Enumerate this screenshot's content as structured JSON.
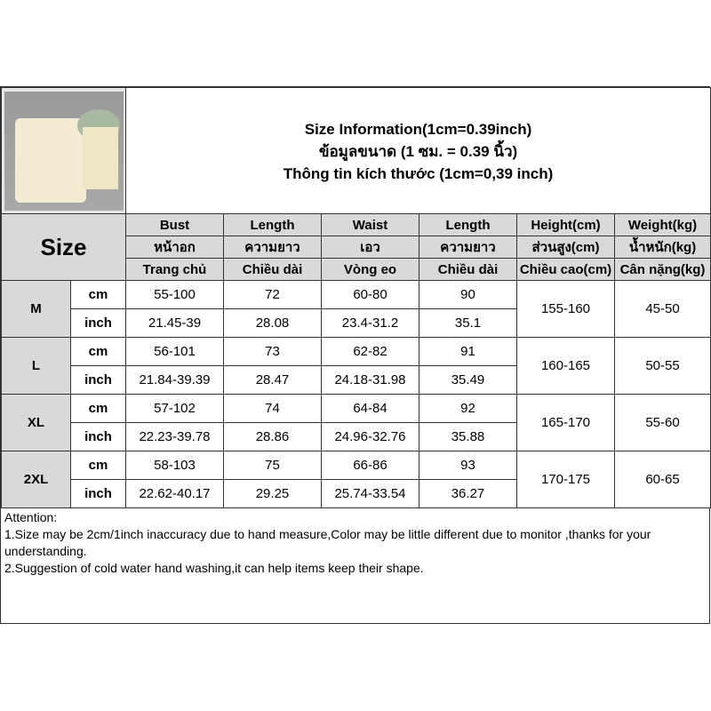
{
  "title": {
    "line1": "Size Information(1cm=0.39inch)",
    "line2": "ข้อมูลขนาด (1 ซม. = 0.39 นิ้ว)",
    "line3": "Thông tin kích thước (1cm=0,39 inch)"
  },
  "size_label": "Size",
  "headers": [
    [
      "Bust",
      "Length",
      "Waist",
      "Length",
      "Height(cm)",
      "Weight(kg)"
    ],
    [
      "หน้าอก",
      "ความยาว",
      "เอว",
      "ความยาว",
      "ส่วนสูง(cm)",
      "น้ำหนัก(kg)"
    ],
    [
      "Trang chủ",
      "Chiều dài",
      "Vòng eo",
      "Chiều dài",
      "Chiều cao(cm)",
      "Cân nặng(kg)"
    ]
  ],
  "units": {
    "cm": "cm",
    "inch": "inch"
  },
  "rows": [
    {
      "size": "M",
      "cm": [
        "55-100",
        "72",
        "60-80",
        "90"
      ],
      "inch": [
        "21.45-39",
        "28.08",
        "23.4-31.2",
        "35.1"
      ],
      "height": "155-160",
      "weight": "45-50"
    },
    {
      "size": "L",
      "cm": [
        "56-101",
        "73",
        "62-82",
        "91"
      ],
      "inch": [
        "21.84-39.39",
        "28.47",
        "24.18-31.98",
        "35.49"
      ],
      "height": "160-165",
      "weight": "50-55"
    },
    {
      "size": "XL",
      "cm": [
        "57-102",
        "74",
        "64-84",
        "92"
      ],
      "inch": [
        "22.23-39.78",
        "28.86",
        "24.96-32.76",
        "35.88"
      ],
      "height": "165-170",
      "weight": "55-60"
    },
    {
      "size": "2XL",
      "cm": [
        "58-103",
        "75",
        "66-86",
        "93"
      ],
      "inch": [
        "22.62-40.17",
        "29.25",
        "25.74-33.54",
        "36.27"
      ],
      "height": "170-175",
      "weight": "60-65"
    }
  ],
  "attention": [
    "Attention:",
    "1.Size may be 2cm/1inch inaccuracy due to hand measure,Color may be little different due to monitor ,thanks for your understanding.",
    "2.Suggestion of cold water hand washing,it can help items keep their shape."
  ]
}
